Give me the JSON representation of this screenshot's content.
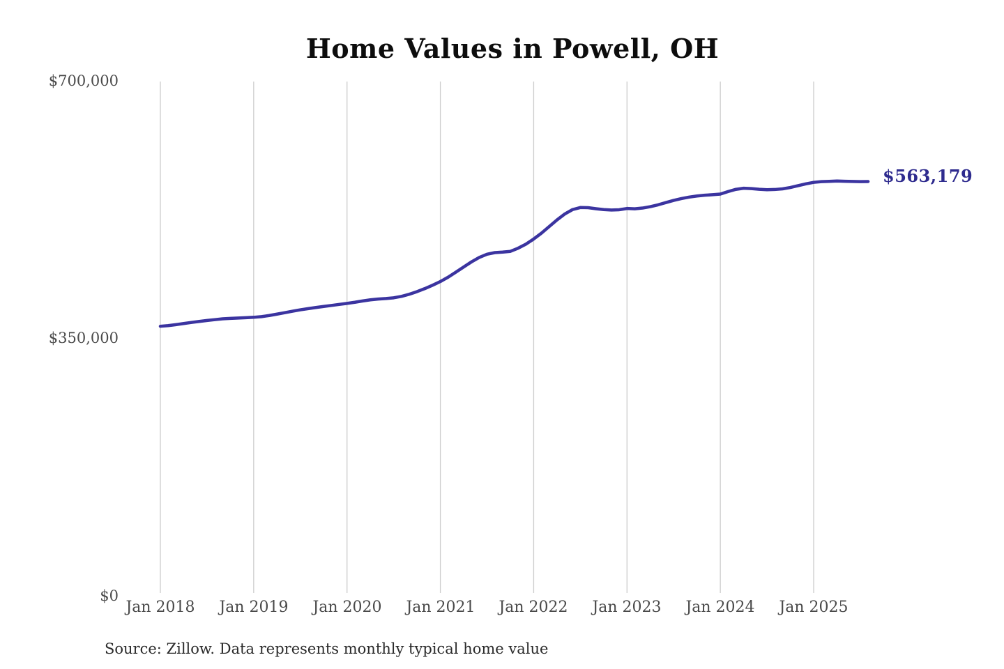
{
  "chart": {
    "title": "Home Values in Powell, OH",
    "y_ticks": [
      "$700,000",
      "$350,000",
      "$0"
    ],
    "x_ticks": [
      "Jan 2018",
      "Jan 2019",
      "Jan 2020",
      "Jan 2021",
      "Jan 2022",
      "Jan 2023",
      "Jan 2024",
      "Jan 2025"
    ],
    "end_label": "$563,179",
    "source_note": "Source: Zillow. Data represents monthly typical home value",
    "colors": {
      "line": "#3b34a0",
      "end_label": "#2e2b8e",
      "grid": "#cccccc",
      "axis_text": "#4a4a4a",
      "title_text": "#0d0d0d",
      "source_text": "#2a2a2a",
      "background": "#ffffff"
    }
  },
  "chart_data": {
    "type": "line",
    "title": "Home Values in Powell, OH",
    "series_name": "Monthly typical home value",
    "unit": "USD",
    "x_start_month": "2018-01",
    "x_end_month": "2025-08",
    "x_tick_labels": [
      "Jan 2018",
      "Jan 2019",
      "Jan 2020",
      "Jan 2021",
      "Jan 2022",
      "Jan 2023",
      "Jan 2024",
      "Jan 2025"
    ],
    "y_tick_values": [
      0,
      350000,
      700000
    ],
    "y_tick_labels": [
      "$0",
      "$350,000",
      "$700,000"
    ],
    "ylim": [
      0,
      700000
    ],
    "grid": "vertical-only",
    "legend": "none",
    "latest_value": 563179,
    "latest_label": "$563,179",
    "values": [
      366400,
      367300,
      368600,
      370100,
      371600,
      373000,
      374300,
      375400,
      376500,
      377100,
      377600,
      378100,
      378600,
      379500,
      381000,
      382900,
      384900,
      386900,
      388800,
      390400,
      391900,
      393300,
      394700,
      396100,
      397500,
      399000,
      400800,
      402300,
      403400,
      404100,
      405100,
      407000,
      409900,
      413500,
      417600,
      422200,
      427200,
      433100,
      440000,
      447000,
      453900,
      459900,
      464300,
      466500,
      467200,
      468200,
      472500,
      478000,
      485000,
      493000,
      502000,
      511000,
      519000,
      525000,
      527800,
      527600,
      526200,
      525000,
      524400,
      524800,
      526500,
      526100,
      527100,
      529000,
      531500,
      534500,
      537500,
      540000,
      542000,
      543500,
      544500,
      545200,
      546100,
      549500,
      552500,
      554000,
      553500,
      552600,
      552000,
      552300,
      553200,
      555000,
      557500,
      560000,
      562000,
      563000,
      563400,
      563800,
      563500,
      563200,
      563000,
      563179
    ]
  }
}
